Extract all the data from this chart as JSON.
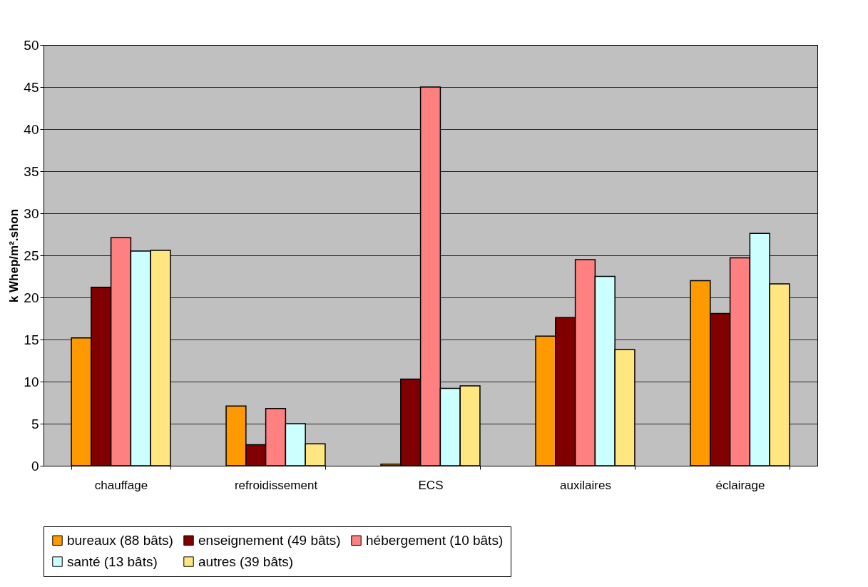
{
  "chart_data": {
    "type": "bar",
    "ylabel": "k Whep/m².shon",
    "categories": [
      "chauffage",
      "refroidissement",
      "ECS",
      "auxilaires",
      "éclairage"
    ],
    "series": [
      {
        "name": "bureaux (88 bâts)",
        "color": "#ff9900",
        "values": [
          15.2,
          7.1,
          0.2,
          15.4,
          22.0
        ]
      },
      {
        "name": "enseignement (49 bâts)",
        "color": "#800000",
        "values": [
          21.2,
          2.5,
          10.3,
          17.6,
          18.1
        ]
      },
      {
        "name": "hébergement (10 bâts)",
        "color": "#ff8080",
        "values": [
          27.1,
          6.8,
          45.0,
          24.5,
          24.7
        ]
      },
      {
        "name": "santé (13 bâts)",
        "color": "#ccffff",
        "values": [
          25.5,
          5.0,
          9.2,
          22.5,
          27.6
        ]
      },
      {
        "name": "autres (39 bâts)",
        "color": "#ffe680",
        "values": [
          25.6,
          2.6,
          9.5,
          13.8,
          21.6
        ]
      }
    ],
    "ylim": [
      0,
      50
    ],
    "yticks": [
      0,
      5,
      10,
      15,
      20,
      25,
      30,
      35,
      40,
      45,
      50
    ],
    "grid": "y",
    "legend": "bottom"
  }
}
